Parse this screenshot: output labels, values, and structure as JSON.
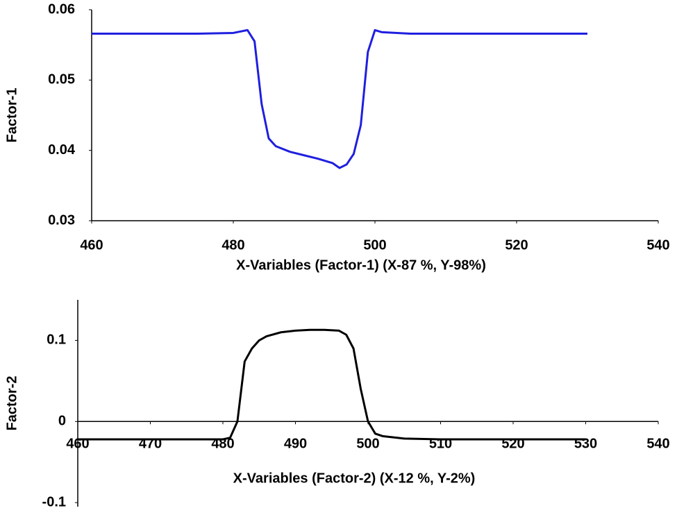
{
  "chart_data": [
    {
      "type": "line",
      "y_label": "Factor-1",
      "x_label": "X-Variables (Factor-1) (X-87 %, Y-98%)",
      "x": [
        460,
        465,
        470,
        475,
        480,
        482,
        483,
        484,
        485,
        486,
        488,
        490,
        492,
        494,
        495,
        496,
        497,
        498,
        499,
        500,
        501,
        505,
        510,
        515,
        520,
        525,
        530
      ],
      "values": [
        0.0566,
        0.0566,
        0.0566,
        0.0566,
        0.0567,
        0.0571,
        0.0555,
        0.0466,
        0.0417,
        0.0406,
        0.0398,
        0.0393,
        0.0388,
        0.0382,
        0.0375,
        0.038,
        0.0395,
        0.0436,
        0.054,
        0.0571,
        0.0568,
        0.0566,
        0.0566,
        0.0566,
        0.0566,
        0.0566,
        0.0566
      ],
      "color": "#1f1fe0",
      "xlim": [
        460,
        540
      ],
      "xticks": [
        460,
        480,
        500,
        520,
        540
      ],
      "ylim": [
        0.03,
        0.06
      ],
      "yticks": [
        0.03,
        0.04,
        0.05,
        0.06
      ]
    },
    {
      "type": "line",
      "y_label": "Factor-2",
      "x_label": "X-Variables (Factor-2) (X-12 %, Y-2%)",
      "x": [
        460,
        465,
        470,
        475,
        480,
        481,
        482,
        483,
        484,
        485,
        486,
        488,
        490,
        492,
        494,
        496,
        497,
        498,
        499,
        500,
        501,
        502,
        505,
        510,
        515,
        520,
        525,
        530
      ],
      "values": [
        -0.022,
        -0.022,
        -0.022,
        -0.022,
        -0.022,
        -0.02,
        0.0,
        0.074,
        0.09,
        0.1,
        0.105,
        0.11,
        0.112,
        0.113,
        0.113,
        0.112,
        0.107,
        0.09,
        0.04,
        0.0,
        -0.015,
        -0.018,
        -0.021,
        -0.022,
        -0.022,
        -0.022,
        -0.022,
        -0.022
      ],
      "color": "#000000",
      "xlim": [
        460,
        540
      ],
      "xticks": [
        460,
        470,
        480,
        490,
        500,
        510,
        520,
        530,
        540
      ],
      "ylim": [
        -0.105,
        0.15
      ],
      "yticks": [
        -0.1,
        0,
        0.1
      ]
    }
  ]
}
